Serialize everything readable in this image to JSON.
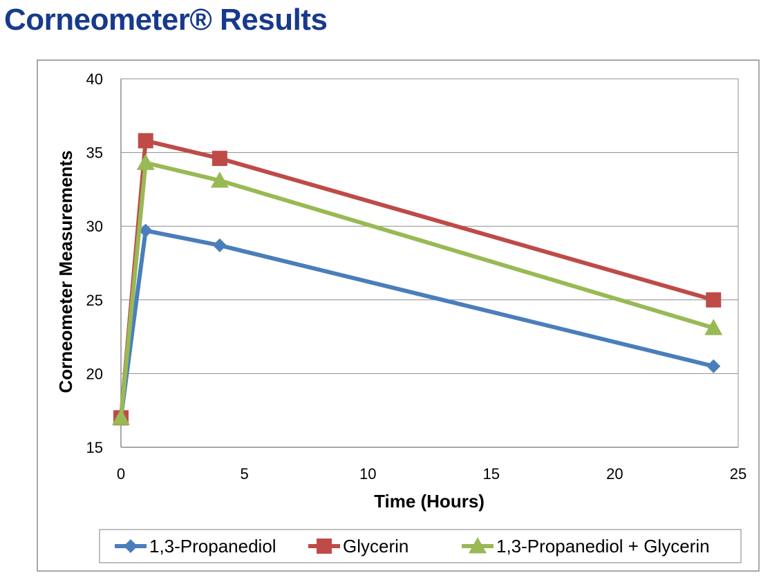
{
  "slide": {
    "title": "Corneometer® Results"
  },
  "chart_data": {
    "type": "line",
    "title": "",
    "xlabel": "Time (Hours)",
    "ylabel": "Corneometer Measurements",
    "xlim": [
      0,
      25
    ],
    "ylim": [
      15,
      40
    ],
    "xticks": [
      0,
      5,
      10,
      15,
      20,
      25
    ],
    "yticks": [
      15,
      20,
      25,
      30,
      35,
      40
    ],
    "grid": "horizontal",
    "legend_position": "bottom",
    "series": [
      {
        "name": "1,3-Propanediol",
        "color": "#4a7ebb",
        "marker": "diamond",
        "points": [
          {
            "x": 0,
            "y": 17.0
          },
          {
            "x": 1,
            "y": 29.7
          },
          {
            "x": 4,
            "y": 28.7
          },
          {
            "x": 24,
            "y": 20.5
          }
        ]
      },
      {
        "name": "Glycerin",
        "color": "#be4b48",
        "marker": "square",
        "points": [
          {
            "x": 0,
            "y": 17.0
          },
          {
            "x": 1,
            "y": 35.8
          },
          {
            "x": 4,
            "y": 34.6
          },
          {
            "x": 24,
            "y": 25.0
          }
        ]
      },
      {
        "name": "1,3-Propanediol + Glycerin",
        "color": "#98b954",
        "marker": "triangle",
        "points": [
          {
            "x": 0,
            "y": 17.0
          },
          {
            "x": 1,
            "y": 34.3
          },
          {
            "x": 4,
            "y": 33.1
          },
          {
            "x": 24,
            "y": 23.1
          }
        ]
      }
    ]
  }
}
